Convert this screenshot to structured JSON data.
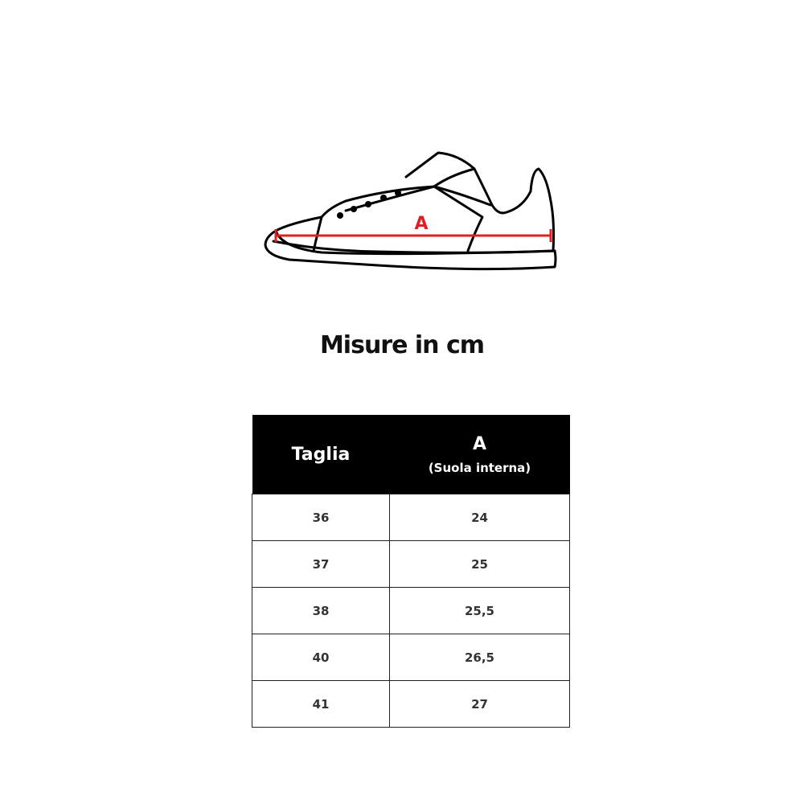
{
  "diagram": {
    "measure_label": "A",
    "measure_color": "#e02020"
  },
  "title": "Misure in cm",
  "table": {
    "headers": {
      "size": "Taglia",
      "a": "A",
      "a_sub": "(Suola interna)"
    },
    "rows": [
      {
        "size": "36",
        "a": "24"
      },
      {
        "size": "37",
        "a": "25"
      },
      {
        "size": "38",
        "a": "25,5"
      },
      {
        "size": "40",
        "a": "26,5"
      },
      {
        "size": "41",
        "a": "27"
      }
    ]
  }
}
